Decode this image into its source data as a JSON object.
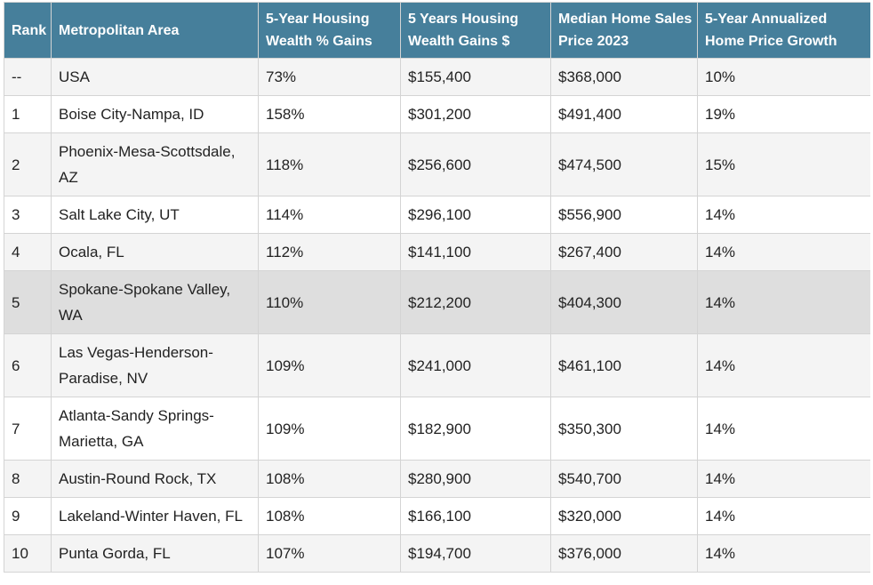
{
  "table": {
    "header": [
      "Rank",
      "Metropolitan Area",
      "5-Year Housing Wealth % Gains",
      "5 Years Housing Wealth Gains $",
      "Median Home Sales Price 2023",
      "5-Year Annualized Home Price Growth"
    ],
    "rows": [
      [
        "--",
        "USA",
        "73%",
        "$155,400",
        "$368,000",
        "10%"
      ],
      [
        "1",
        "Boise City-Nampa, ID",
        "158%",
        "$301,200",
        "$491,400",
        "19%"
      ],
      [
        "2",
        "Phoenix-Mesa-Scottsdale, AZ",
        "118%",
        "$256,600",
        "$474,500",
        "15%"
      ],
      [
        "3",
        "Salt Lake City, UT",
        "114%",
        "$296,100",
        "$556,900",
        "14%"
      ],
      [
        "4",
        "Ocala, FL",
        "112%",
        "$141,100",
        "$267,400",
        "14%"
      ],
      [
        "5",
        "Spokane-Spokane Valley, WA",
        "110%",
        "$212,200",
        "$404,300",
        "14%"
      ],
      [
        "6",
        "Las Vegas-Henderson-Paradise, NV",
        "109%",
        "$241,000",
        "$461,100",
        "14%"
      ],
      [
        "7",
        "Atlanta-Sandy Springs-Marietta, GA",
        "109%",
        "$182,900",
        "$350,300",
        "14%"
      ],
      [
        "8",
        "Austin-Round Rock, TX",
        "108%",
        "$280,900",
        "$540,700",
        "14%"
      ],
      [
        "9",
        "Lakeland-Winter Haven, FL",
        "108%",
        "$166,100",
        "$320,000",
        "14%"
      ],
      [
        "10",
        "Punta Gorda, FL",
        "107%",
        "$194,700",
        "$376,000",
        "14%"
      ]
    ]
  }
}
